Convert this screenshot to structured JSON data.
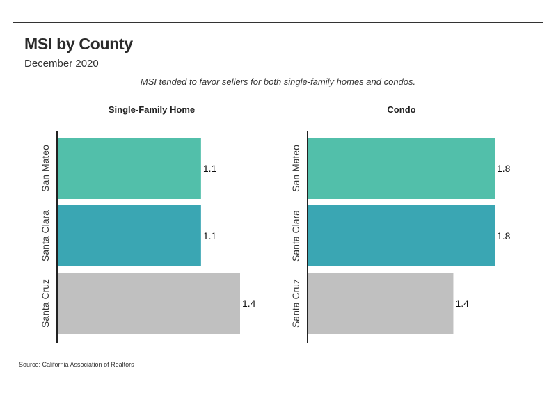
{
  "header": {
    "title": "MSI by County",
    "subtitle": "December 2020",
    "note": "MSI tended to favor sellers for both single-family homes and condos."
  },
  "footer": {
    "source": "Source:  California Association of Realtors"
  },
  "colors": {
    "san_mateo": "#52bfaa",
    "santa_clara": "#3aa6b3",
    "santa_cruz": "#c0c0c0",
    "axis": "#222222"
  },
  "chart_data": [
    {
      "type": "bar",
      "orientation": "horizontal",
      "title": "Single-Family Home",
      "categories": [
        "San Mateo",
        "Santa Clara",
        "Santa Cruz"
      ],
      "values": [
        1.1,
        1.1,
        1.4
      ],
      "value_labels": [
        "1.1",
        "1.1",
        "1.4"
      ],
      "xlim": [
        0,
        1.4
      ],
      "grid": false
    },
    {
      "type": "bar",
      "orientation": "horizontal",
      "title": "Condo",
      "categories": [
        "San Mateo",
        "Santa Clara",
        "Santa Cruz"
      ],
      "values": [
        1.8,
        1.8,
        1.4
      ],
      "value_labels": [
        "1.8",
        "1.8",
        "1.4"
      ],
      "xlim": [
        0,
        1.8
      ],
      "grid": false
    }
  ]
}
